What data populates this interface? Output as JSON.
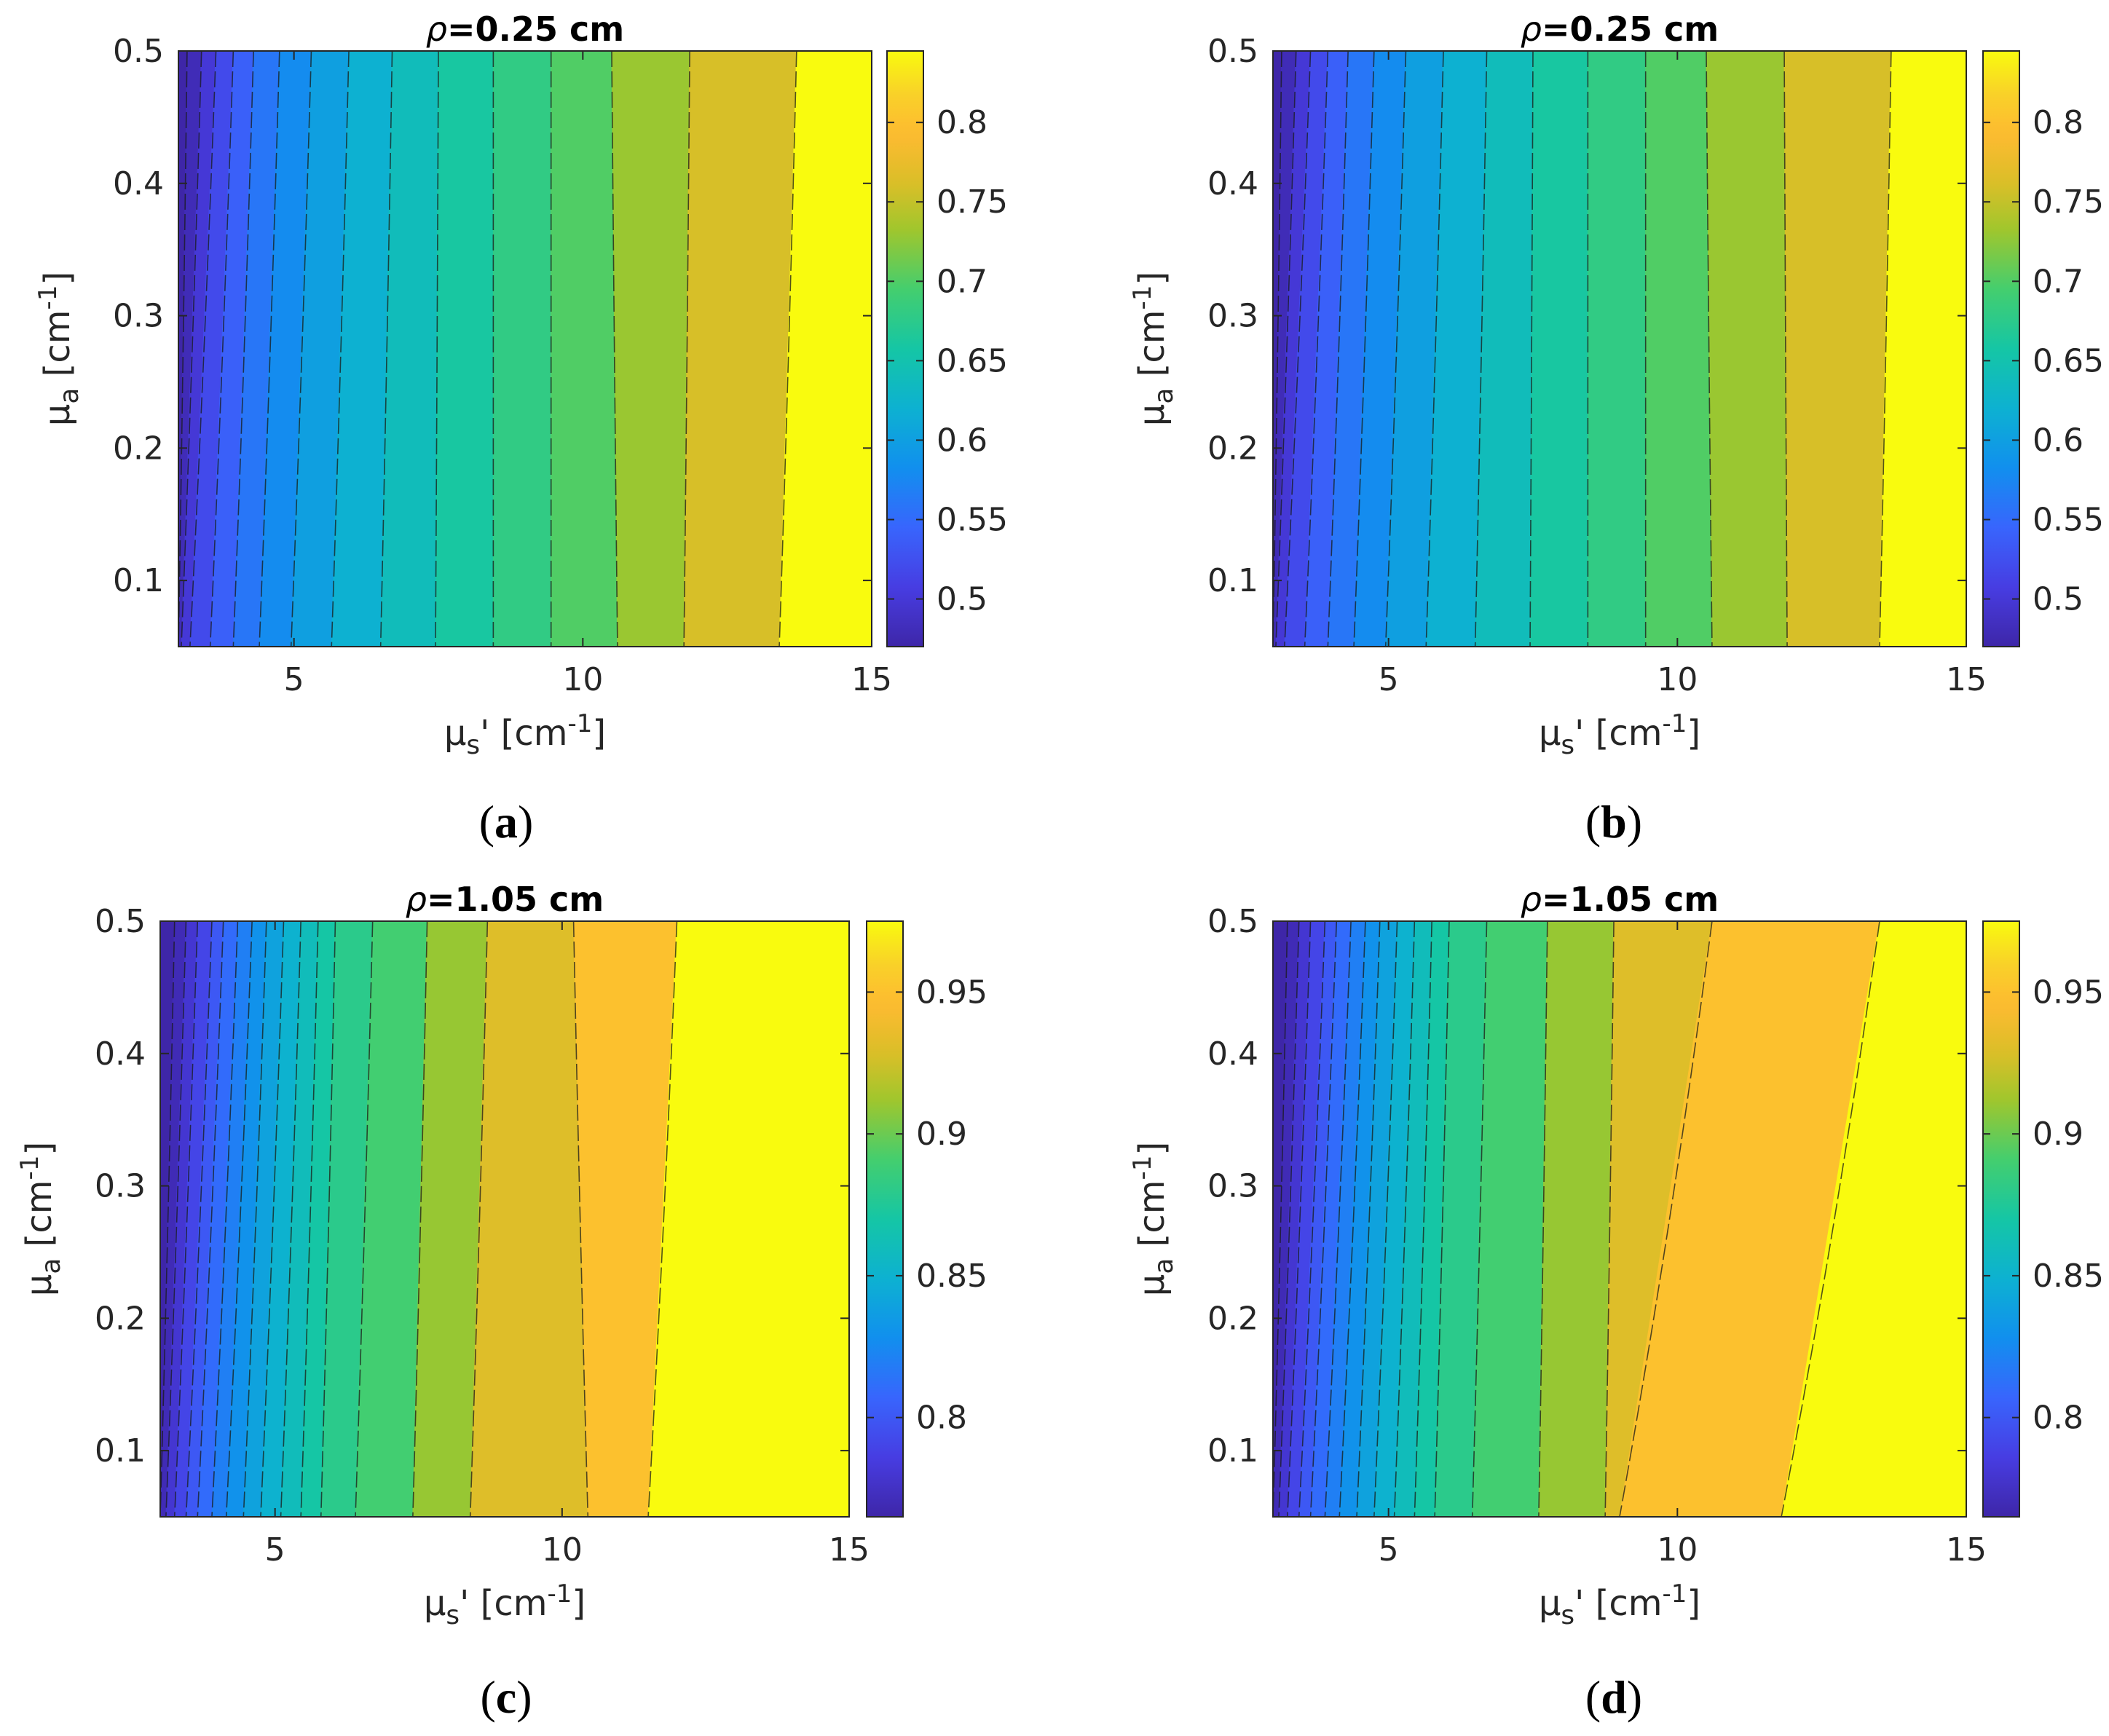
{
  "figure": {
    "captions": [
      "(a)",
      "(b)",
      "(c)",
      "(d)"
    ]
  },
  "chart_data": [
    {
      "panel": "a",
      "type": "contour",
      "title": "ρ=0.25 cm",
      "title_rho": "ρ",
      "title_value": "=0.25 cm",
      "xlabel": "μs' [cm-1]",
      "ylabel": "μa [cm-1]",
      "xlim": [
        3,
        15
      ],
      "ylim": [
        0.05,
        0.5
      ],
      "xticks": [
        5,
        10,
        15
      ],
      "yticks": [
        0.1,
        0.2,
        0.3,
        0.4,
        0.5
      ],
      "colorbar": {
        "range": [
          0.47,
          0.845
        ],
        "ticks": [
          0.5,
          0.55,
          0.6,
          0.65,
          0.7,
          0.75,
          0.8
        ]
      },
      "contours": [
        {
          "level": 0.48,
          "top": 3.15,
          "bottom": 3.0
        },
        {
          "level": 0.5,
          "top": 3.4,
          "bottom": 3.05
        },
        {
          "level": 0.52,
          "top": 3.65,
          "bottom": 3.2
        },
        {
          "level": 0.54,
          "top": 3.95,
          "bottom": 3.55
        },
        {
          "level": 0.56,
          "top": 4.3,
          "bottom": 3.95
        },
        {
          "level": 0.58,
          "top": 4.75,
          "bottom": 4.4
        },
        {
          "level": 0.6,
          "top": 5.3,
          "bottom": 4.95
        },
        {
          "level": 0.62,
          "top": 5.95,
          "bottom": 5.65
        },
        {
          "level": 0.64,
          "top": 6.7,
          "bottom": 6.5
        },
        {
          "level": 0.66,
          "top": 7.5,
          "bottom": 7.45
        },
        {
          "level": 0.68,
          "top": 8.45,
          "bottom": 8.45
        },
        {
          "level": 0.7,
          "top": 9.45,
          "bottom": 9.45
        },
        {
          "level": 0.73,
          "top": 10.5,
          "bottom": 10.6
        },
        {
          "level": 0.76,
          "top": 11.85,
          "bottom": 11.75
        },
        {
          "level": 0.8,
          "top": 13.7,
          "bottom": 13.4
        }
      ]
    },
    {
      "panel": "b",
      "type": "contour",
      "title": "ρ=0.25 cm",
      "title_rho": "ρ",
      "title_value": "=0.25 cm",
      "xlabel": "μs' [cm-1]",
      "ylabel": "μa [cm-1]",
      "xlim": [
        3,
        15
      ],
      "ylim": [
        0.05,
        0.5
      ],
      "xticks": [
        5,
        10,
        15
      ],
      "yticks": [
        0.1,
        0.2,
        0.3,
        0.4,
        0.5
      ],
      "colorbar": {
        "range": [
          0.47,
          0.845
        ],
        "ticks": [
          0.5,
          0.55,
          0.6,
          0.65,
          0.7,
          0.75,
          0.8
        ]
      },
      "contours": [
        {
          "level": 0.48,
          "top": 3.15,
          "bottom": 3.0
        },
        {
          "level": 0.5,
          "top": 3.4,
          "bottom": 3.05
        },
        {
          "level": 0.52,
          "top": 3.65,
          "bottom": 3.2
        },
        {
          "level": 0.54,
          "top": 3.95,
          "bottom": 3.55
        },
        {
          "level": 0.56,
          "top": 4.3,
          "bottom": 3.95
        },
        {
          "level": 0.58,
          "top": 4.75,
          "bottom": 4.4
        },
        {
          "level": 0.6,
          "top": 5.3,
          "bottom": 4.95
        },
        {
          "level": 0.62,
          "top": 5.95,
          "bottom": 5.65
        },
        {
          "level": 0.64,
          "top": 6.7,
          "bottom": 6.5
        },
        {
          "level": 0.66,
          "top": 7.5,
          "bottom": 7.45
        },
        {
          "level": 0.68,
          "top": 8.45,
          "bottom": 8.45
        },
        {
          "level": 0.7,
          "top": 9.45,
          "bottom": 9.45
        },
        {
          "level": 0.73,
          "top": 10.5,
          "bottom": 10.6
        },
        {
          "level": 0.76,
          "top": 11.85,
          "bottom": 11.9
        },
        {
          "level": 0.8,
          "top": 13.7,
          "bottom": 13.5
        }
      ]
    },
    {
      "panel": "c",
      "type": "contour",
      "title": "ρ=1.05 cm",
      "title_rho": "ρ",
      "title_value": "=1.05 cm",
      "xlabel": "μs' [cm-1]",
      "ylabel": "μa [cm-1]",
      "xlim": [
        3,
        15
      ],
      "ylim": [
        0.05,
        0.5
      ],
      "xticks": [
        5,
        10,
        15
      ],
      "yticks": [
        0.1,
        0.2,
        0.3,
        0.4,
        0.5
      ],
      "colorbar": {
        "range": [
          0.765,
          0.975
        ],
        "ticks": [
          0.8,
          0.85,
          0.9,
          0.95
        ]
      },
      "contours": [
        {
          "level": 0.77,
          "top": 3.25,
          "bottom": 3.0
        },
        {
          "level": 0.78,
          "top": 3.45,
          "bottom": 3.1
        },
        {
          "level": 0.79,
          "top": 3.65,
          "bottom": 3.25
        },
        {
          "level": 0.8,
          "top": 3.9,
          "bottom": 3.45
        },
        {
          "level": 0.81,
          "top": 4.1,
          "bottom": 3.65
        },
        {
          "level": 0.82,
          "top": 4.35,
          "bottom": 3.9
        },
        {
          "level": 0.83,
          "top": 4.6,
          "bottom": 4.15
        },
        {
          "level": 0.84,
          "top": 4.85,
          "bottom": 4.45
        },
        {
          "level": 0.85,
          "top": 5.15,
          "bottom": 4.75
        },
        {
          "level": 0.86,
          "top": 5.45,
          "bottom": 5.1
        },
        {
          "level": 0.87,
          "top": 5.75,
          "bottom": 5.45
        },
        {
          "level": 0.88,
          "top": 6.05,
          "bottom": 5.8
        },
        {
          "level": 0.89,
          "top": 6.7,
          "bottom": 6.4
        },
        {
          "level": 0.91,
          "top": 7.65,
          "bottom": 7.4
        },
        {
          "level": 0.93,
          "top": 8.7,
          "bottom": 8.4
        },
        {
          "level": 0.95,
          "top": 10.2,
          "bottom": 10.45
        },
        {
          "level": 0.96,
          "top": 12.0,
          "bottom": 11.5
        }
      ]
    },
    {
      "panel": "d",
      "type": "contour",
      "title": "ρ=1.05 cm",
      "title_rho": "ρ",
      "title_value": "=1.05 cm",
      "xlabel": "μs' [cm-1]",
      "ylabel": "μa [cm-1]",
      "xlim": [
        3,
        15
      ],
      "ylim": [
        0.05,
        0.5
      ],
      "xticks": [
        5,
        10,
        15
      ],
      "yticks": [
        0.1,
        0.2,
        0.3,
        0.4,
        0.5
      ],
      "colorbar": {
        "range": [
          0.765,
          0.975
        ],
        "ticks": [
          0.8,
          0.85,
          0.9,
          0.95
        ]
      },
      "contours": [
        {
          "level": 0.77,
          "top": 3.25,
          "bottom": 3.0
        },
        {
          "level": 0.78,
          "top": 3.45,
          "bottom": 3.1
        },
        {
          "level": 0.79,
          "top": 3.65,
          "bottom": 3.25
        },
        {
          "level": 0.8,
          "top": 3.9,
          "bottom": 3.45
        },
        {
          "level": 0.81,
          "top": 4.1,
          "bottom": 3.65
        },
        {
          "level": 0.82,
          "top": 4.35,
          "bottom": 3.9
        },
        {
          "level": 0.83,
          "top": 4.6,
          "bottom": 4.15
        },
        {
          "level": 0.84,
          "top": 4.85,
          "bottom": 4.45
        },
        {
          "level": 0.85,
          "top": 5.15,
          "bottom": 4.75
        },
        {
          "level": 0.86,
          "top": 5.45,
          "bottom": 5.1
        },
        {
          "level": 0.87,
          "top": 5.75,
          "bottom": 5.45
        },
        {
          "level": 0.88,
          "top": 6.05,
          "bottom": 5.8
        },
        {
          "level": 0.89,
          "top": 6.7,
          "bottom": 6.45
        },
        {
          "level": 0.91,
          "top": 7.75,
          "bottom": 7.6
        },
        {
          "level": 0.93,
          "top": 8.9,
          "bottom": 8.75
        },
        {
          "level": 0.95,
          "top": 10.6,
          "bottom": 9.0
        },
        {
          "level": 0.96,
          "top": 13.5,
          "bottom": 11.8
        }
      ]
    }
  ]
}
